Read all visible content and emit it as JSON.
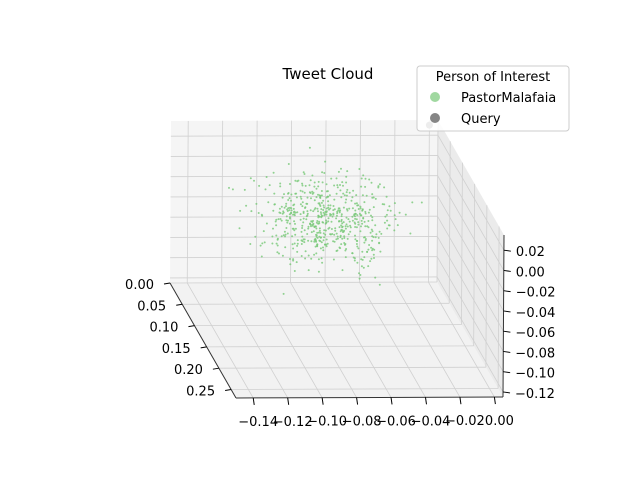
{
  "chart_data": {
    "type": "scatter",
    "projection": "3d",
    "title": "Tweet Cloud",
    "xlabel": "",
    "ylabel": "",
    "zlabel": "",
    "grid": true,
    "xlim": [
      0.0,
      0.27
    ],
    "ylim": [
      -0.15,
      0.005
    ],
    "zlim": [
      -0.125,
      0.035
    ],
    "x_ticks": [
      "0.00",
      "0.05",
      "0.10",
      "0.15",
      "0.20",
      "0.25"
    ],
    "x_tick_values": [
      0.0,
      0.05,
      0.1,
      0.15,
      0.2,
      0.25
    ],
    "y_ticks": [
      "−0.14",
      "−0.12",
      "−0.10",
      "−0.08",
      "−0.06",
      "−0.04",
      "−0.02",
      "0.00"
    ],
    "y_tick_values": [
      -0.14,
      -0.12,
      -0.1,
      -0.08,
      -0.06,
      -0.04,
      -0.02,
      0.0
    ],
    "z_ticks": [
      "−0.12",
      "−0.10",
      "−0.08",
      "−0.06",
      "−0.04",
      "−0.02",
      "0.00",
      "0.02"
    ],
    "z_tick_values": [
      -0.12,
      -0.1,
      -0.08,
      -0.06,
      -0.04,
      -0.02,
      0.0,
      0.02
    ],
    "legend": {
      "title": "Person of Interest",
      "location": "top-right",
      "entries": [
        {
          "name": "PastorMalafaia",
          "color": "#77c877"
        },
        {
          "name": "Query",
          "color": "#666666"
        }
      ]
    },
    "series": [
      {
        "name": "PastorMalafaia",
        "color": "#77c877",
        "count_estimate": 600,
        "x_center": 0.1,
        "x_spread": 0.09,
        "y_center": -0.075,
        "y_spread": 0.055,
        "z_center": -0.02,
        "z_spread": 0.05
      },
      {
        "name": "Query",
        "color": "#666666",
        "points": [
          [
            0.0,
            0.0,
            0.03
          ]
        ]
      }
    ]
  }
}
